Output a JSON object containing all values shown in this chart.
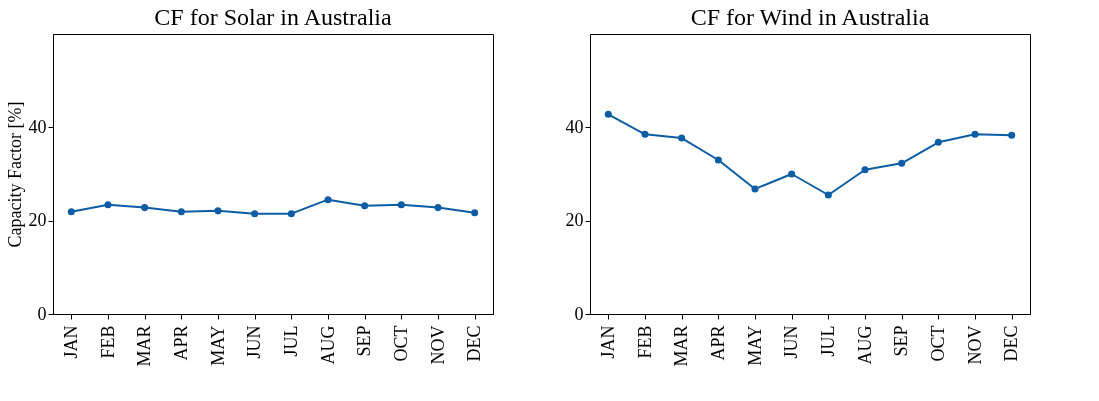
{
  "chart_data": [
    {
      "type": "line",
      "title": "CF for Solar in Australia",
      "ylabel": "Capacity Factor [%]",
      "categories": [
        "JAN",
        "FEB",
        "MAR",
        "APR",
        "MAY",
        "JUN",
        "JUL",
        "AUG",
        "SEP",
        "OCT",
        "NOV",
        "DEC"
      ],
      "series": [
        {
          "color": "#0c5da5",
          "values": [
            21.9,
            23.4,
            22.8,
            21.9,
            22.1,
            21.5,
            21.5,
            24.5,
            23.2,
            23.4,
            22.8,
            21.7
          ]
        }
      ],
      "ylim": [
        0,
        60
      ],
      "yticks": [
        0,
        20,
        40
      ],
      "marker": "circle",
      "line_style": "solid"
    },
    {
      "type": "line",
      "title": "CF for Wind in Australia",
      "categories": [
        "JAN",
        "FEB",
        "MAR",
        "APR",
        "MAY",
        "JUN",
        "JUL",
        "AUG",
        "SEP",
        "OCT",
        "NOV",
        "DEC"
      ],
      "series": [
        {
          "color": "#0c5da5",
          "values": [
            42.8,
            38.5,
            37.7,
            33.0,
            26.8,
            30.0,
            25.5,
            30.9,
            32.3,
            36.8,
            38.5,
            38.3
          ]
        }
      ],
      "ylim": [
        0,
        60
      ],
      "yticks": [
        0,
        20,
        40
      ],
      "marker": "circle",
      "line_style": "solid"
    }
  ]
}
